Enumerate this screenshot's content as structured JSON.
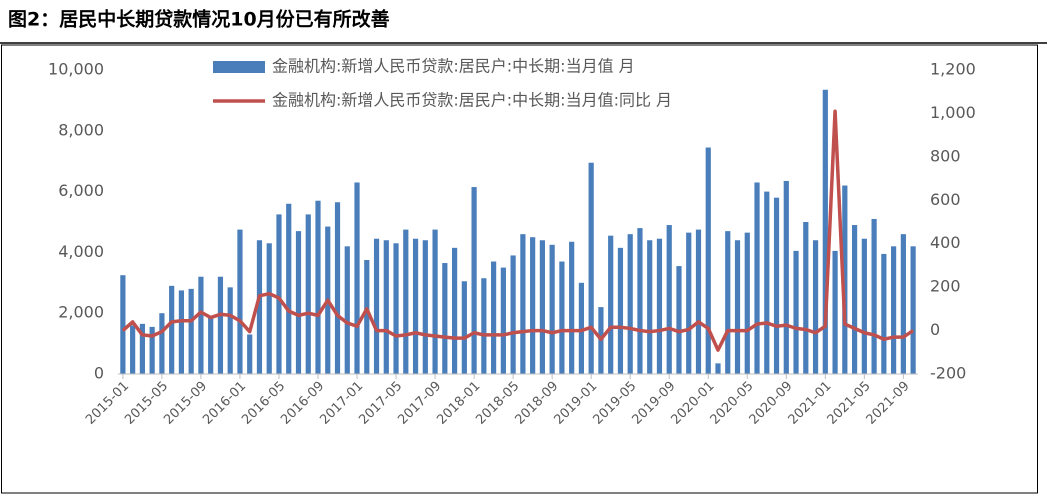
{
  "chart_data": {
    "type": "bar_line",
    "title": "图2：居民中长期贷款情况10月份已有所改善",
    "categories": [
      "2015-01",
      null,
      null,
      null,
      "2015-05",
      null,
      null,
      null,
      "2015-09",
      null,
      null,
      null,
      "2016-01",
      null,
      null,
      null,
      "2016-05",
      null,
      null,
      null,
      "2016-09",
      null,
      null,
      null,
      "2017-01",
      null,
      null,
      null,
      "2017-05",
      null,
      null,
      null,
      "2017-09",
      null,
      null,
      null,
      "2018-01",
      null,
      null,
      null,
      "2018-05",
      null,
      null,
      null,
      "2018-09",
      null,
      null,
      null,
      "2019-01",
      null,
      null,
      null,
      "2019-05",
      null,
      null,
      null,
      "2019-09",
      null,
      null,
      null,
      "2020-01",
      null,
      null,
      null,
      "2020-05",
      null,
      null,
      null,
      "2020-09",
      null,
      null,
      null,
      "2021-01",
      null,
      null,
      null,
      "2021-05",
      null,
      null,
      null,
      "2021-09",
      null
    ],
    "series": [
      {
        "name": "金融机构:新增人民币贷款:居民户:中长期:当月值 月",
        "color": "#4a7ebb",
        "kind": "bar",
        "values": [
          3250,
          1600,
          1650,
          1550,
          2000,
          2900,
          2750,
          2800,
          3200,
          1900,
          3200,
          2850,
          4750,
          1300,
          4400,
          4300,
          5250,
          5600,
          4700,
          5250,
          5700,
          4850,
          5650,
          4200,
          6300,
          3750,
          4450,
          4400,
          4300,
          4750,
          4450,
          4400,
          4750,
          3650,
          4150,
          3050,
          6150,
          3150,
          3700,
          3500,
          3900,
          4600,
          4500,
          4400,
          4250,
          3700,
          4350,
          3000,
          6950,
          2200,
          4550,
          4150,
          4600,
          4800,
          4400,
          4450,
          4900,
          3550,
          4650,
          4750,
          7450,
          350,
          4700,
          4400,
          4650,
          6300,
          6000,
          5800,
          6350,
          4050,
          5000,
          4400,
          9350,
          4050,
          6200,
          4900,
          4450,
          5100,
          3950,
          4200,
          4600,
          4200
        ]
      },
      {
        "name": "金融机构:新增人民币贷款:居民户:中长期:当月值:同比 月",
        "color": "#c0504d",
        "kind": "line",
        "axis": "y2",
        "values": [
          0,
          40,
          -20,
          -25,
          -5,
          40,
          45,
          45,
          85,
          60,
          75,
          70,
          45,
          -5,
          160,
          170,
          150,
          90,
          70,
          80,
          70,
          140,
          70,
          35,
          20,
          100,
          0,
          0,
          -25,
          -20,
          -10,
          -20,
          -25,
          -30,
          -35,
          -35,
          -10,
          -20,
          -20,
          -20,
          -10,
          -5,
          0,
          0,
          -10,
          0,
          0,
          0,
          15,
          -40,
          15,
          15,
          10,
          0,
          -5,
          0,
          10,
          -5,
          5,
          40,
          10,
          -90,
          0,
          0,
          0,
          30,
          35,
          20,
          25,
          10,
          5,
          -10,
          20,
          1010,
          30,
          10,
          -10,
          -20,
          -40,
          -30,
          -30,
          0
        ]
      }
    ],
    "ylim": [
      0,
      10000
    ],
    "yticks": [
      0,
      {
        "value": 2000,
        "label": "2,000"
      },
      {
        "value": 4000,
        "label": "4,000"
      },
      {
        "value": 6000,
        "label": "6,000"
      },
      {
        "value": 8000,
        "label": "8,000"
      },
      {
        "value": 10000,
        "label": "10,000"
      }
    ],
    "y2lim": [
      -200,
      1200
    ],
    "y2ticks": [
      -200,
      0,
      200,
      400,
      600,
      800,
      {
        "value": 1000,
        "label": "1,000"
      },
      {
        "value": 1200,
        "label": "1,200"
      }
    ],
    "legend": "top"
  }
}
